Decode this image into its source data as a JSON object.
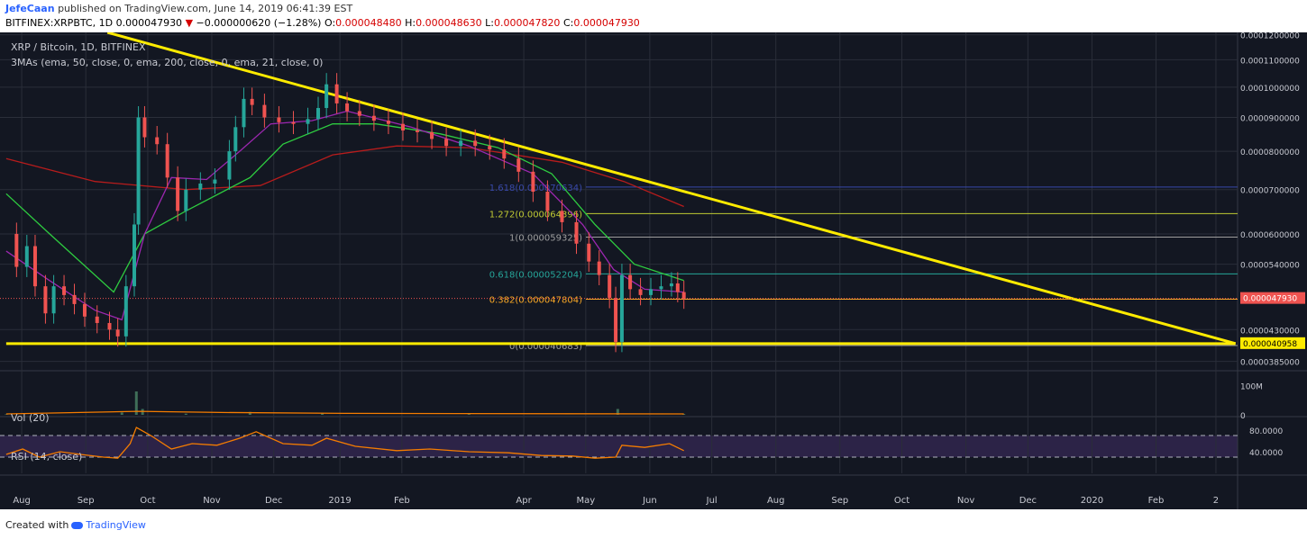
{
  "header": {
    "author": "JefeCaan",
    "published": "published on TradingView.com, June 14, 2019 06:41:39 EST",
    "symbol": "BITFINEX:XRPBTC, 1D",
    "last": "0.000047930",
    "arrow": "▼",
    "change": "−0.000000620 (−1.28%)",
    "o_label": "O:",
    "o": "0.000048480",
    "h_label": "H:",
    "h": "0.000048630",
    "l_label": "L:",
    "l": "0.000047820",
    "c_label": "C:",
    "c": "0.000047930"
  },
  "footer": {
    "created": "Created with",
    "brand": "TradingView"
  },
  "chart_data": {
    "type": "line",
    "title": "XRP / Bitcoin, 1D, BITFINEX",
    "indicator_label": "3MAs (ema, 50, close, 0, ema, 200, close, 0, ema, 21, close, 0)",
    "colors": {
      "bg": "#131722",
      "up": "#26a69a",
      "down": "#ef5350",
      "ema21": "#9c27b0",
      "ema50": "#2ecc40",
      "ema200": "#b71c1c",
      "trend": "#ffeb00",
      "rsi": "#f57c00",
      "grid": "#2a2e39",
      "axis": "#c8cad2"
    },
    "x_ticks": [
      "Aug",
      "Sep",
      "Oct",
      "Nov",
      "Dec",
      "2019",
      "Feb",
      "Apr",
      "May",
      "Jun",
      "Jul",
      "Aug",
      "Sep",
      "Oct",
      "Nov",
      "Dec",
      "2020",
      "Feb",
      "2"
    ],
    "price_ticks": [
      "0.0001200000",
      "0.0001100000",
      "0.0001000000",
      "0.0000900000",
      "0.0000800000",
      "0.0000700000",
      "0.0000600000",
      "0.0000540000",
      "0.0000430000",
      "0.0000385000"
    ],
    "price_range": [
      3.75e-05,
      0.000121
    ],
    "price_marks": [
      {
        "text": "0.000047930",
        "value": 4.793e-05,
        "style": "red"
      },
      {
        "text": "0.000040958",
        "value": 4.0958e-05,
        "style": "yellow"
      }
    ],
    "ohlc_close": [
      {
        "d": "2018-07-20",
        "v": 6e-05
      },
      {
        "d": "2018-07-25",
        "v": 5.35e-05
      },
      {
        "d": "2018-07-30",
        "v": 5.75e-05
      },
      {
        "d": "2018-08-03",
        "v": 5e-05
      },
      {
        "d": "2018-08-08",
        "v": 4.55e-05
      },
      {
        "d": "2018-08-12",
        "v": 5e-05
      },
      {
        "d": "2018-08-17",
        "v": 4.85e-05
      },
      {
        "d": "2018-08-22",
        "v": 4.7e-05
      },
      {
        "d": "2018-08-27",
        "v": 4.5e-05
      },
      {
        "d": "2018-09-02",
        "v": 4.4e-05
      },
      {
        "d": "2018-09-08",
        "v": 4.3e-05
      },
      {
        "d": "2018-09-12",
        "v": 4.2e-05
      },
      {
        "d": "2018-09-16",
        "v": 5e-05
      },
      {
        "d": "2018-09-20",
        "v": 6.2e-05
      },
      {
        "d": "2018-09-22",
        "v": 9e-05
      },
      {
        "d": "2018-09-25",
        "v": 8.4e-05
      },
      {
        "d": "2018-10-01",
        "v": 8.2e-05
      },
      {
        "d": "2018-10-06",
        "v": 7.3e-05
      },
      {
        "d": "2018-10-11",
        "v": 6.5e-05
      },
      {
        "d": "2018-10-15",
        "v": 7e-05
      },
      {
        "d": "2018-10-22",
        "v": 7.15e-05
      },
      {
        "d": "2018-10-29",
        "v": 7.25e-05
      },
      {
        "d": "2018-11-05",
        "v": 8e-05
      },
      {
        "d": "2018-11-08",
        "v": 8.7e-05
      },
      {
        "d": "2018-11-12",
        "v": 9.6e-05
      },
      {
        "d": "2018-11-16",
        "v": 9.4e-05
      },
      {
        "d": "2018-11-22",
        "v": 9e-05
      },
      {
        "d": "2018-11-29",
        "v": 8.85e-05
      },
      {
        "d": "2018-12-06",
        "v": 8.8e-05
      },
      {
        "d": "2018-12-13",
        "v": 8.95e-05
      },
      {
        "d": "2018-12-18",
        "v": 9.3e-05
      },
      {
        "d": "2018-12-22",
        "v": 0.000101
      },
      {
        "d": "2018-12-27",
        "v": 9.45e-05
      },
      {
        "d": "2019-01-01",
        "v": 9.2e-05
      },
      {
        "d": "2019-01-07",
        "v": 9.05e-05
      },
      {
        "d": "2019-01-14",
        "v": 8.9e-05
      },
      {
        "d": "2019-01-21",
        "v": 8.8e-05
      },
      {
        "d": "2019-01-28",
        "v": 8.6e-05
      },
      {
        "d": "2019-02-04",
        "v": 8.55e-05
      },
      {
        "d": "2019-02-11",
        "v": 8.35e-05
      },
      {
        "d": "2019-02-18",
        "v": 8.15e-05
      },
      {
        "d": "2019-02-25",
        "v": 8.3e-05
      },
      {
        "d": "2019-03-04",
        "v": 8.15e-05
      },
      {
        "d": "2019-03-11",
        "v": 8.05e-05
      },
      {
        "d": "2019-03-18",
        "v": 7.8e-05
      },
      {
        "d": "2019-03-25",
        "v": 7.45e-05
      },
      {
        "d": "2019-04-01",
        "v": 6.95e-05
      },
      {
        "d": "2019-04-08",
        "v": 6.5e-05
      },
      {
        "d": "2019-04-15",
        "v": 6.25e-05
      },
      {
        "d": "2019-04-22",
        "v": 5.8e-05
      },
      {
        "d": "2019-04-28",
        "v": 5.45e-05
      },
      {
        "d": "2019-05-03",
        "v": 5.2e-05
      },
      {
        "d": "2019-05-08",
        "v": 4.8e-05
      },
      {
        "d": "2019-05-11",
        "v": 4.12e-05
      },
      {
        "d": "2019-05-14",
        "v": 5.2e-05
      },
      {
        "d": "2019-05-18",
        "v": 4.95e-05
      },
      {
        "d": "2019-05-23",
        "v": 4.85e-05
      },
      {
        "d": "2019-05-28",
        "v": 4.95e-05
      },
      {
        "d": "2019-06-02",
        "v": 5e-05
      },
      {
        "d": "2019-06-07",
        "v": 5.05e-05
      },
      {
        "d": "2019-06-10",
        "v": 4.9e-05
      },
      {
        "d": "2019-06-13",
        "v": 4.79e-05
      }
    ],
    "ema21": [
      {
        "d": "2018-07-20",
        "v": 5.65e-05
      },
      {
        "d": "2018-08-10",
        "v": 5.1e-05
      },
      {
        "d": "2018-09-01",
        "v": 4.6e-05
      },
      {
        "d": "2018-09-14",
        "v": 4.45e-05
      },
      {
        "d": "2018-09-25",
        "v": 6e-05
      },
      {
        "d": "2018-10-08",
        "v": 7.3e-05
      },
      {
        "d": "2018-10-25",
        "v": 7.25e-05
      },
      {
        "d": "2018-11-10",
        "v": 8e-05
      },
      {
        "d": "2018-11-25",
        "v": 8.8e-05
      },
      {
        "d": "2018-12-15",
        "v": 8.9e-05
      },
      {
        "d": "2019-01-01",
        "v": 9.2e-05
      },
      {
        "d": "2019-02-01",
        "v": 8.7e-05
      },
      {
        "d": "2019-03-01",
        "v": 8.15e-05
      },
      {
        "d": "2019-04-01",
        "v": 7.4e-05
      },
      {
        "d": "2019-04-25",
        "v": 6.2e-05
      },
      {
        "d": "2019-05-10",
        "v": 5.3e-05
      },
      {
        "d": "2019-05-25",
        "v": 4.95e-05
      },
      {
        "d": "2019-06-13",
        "v": 4.9e-05
      }
    ],
    "ema50": [
      {
        "d": "2018-07-20",
        "v": 6.9e-05
      },
      {
        "d": "2018-08-10",
        "v": 6e-05
      },
      {
        "d": "2018-09-10",
        "v": 4.9e-05
      },
      {
        "d": "2018-09-25",
        "v": 6e-05
      },
      {
        "d": "2018-10-15",
        "v": 6.5e-05
      },
      {
        "d": "2018-11-15",
        "v": 7.3e-05
      },
      {
        "d": "2018-12-01",
        "v": 8.2e-05
      },
      {
        "d": "2018-12-25",
        "v": 8.8e-05
      },
      {
        "d": "2019-01-15",
        "v": 8.8e-05
      },
      {
        "d": "2019-02-15",
        "v": 8.5e-05
      },
      {
        "d": "2019-03-15",
        "v": 8.1e-05
      },
      {
        "d": "2019-04-10",
        "v": 7.4e-05
      },
      {
        "d": "2019-05-01",
        "v": 6.2e-05
      },
      {
        "d": "2019-05-20",
        "v": 5.4e-05
      },
      {
        "d": "2019-06-13",
        "v": 5.1e-05
      }
    ],
    "ema200": [
      {
        "d": "2018-07-20",
        "v": 7.8e-05
      },
      {
        "d": "2018-09-01",
        "v": 7.2e-05
      },
      {
        "d": "2018-10-15",
        "v": 7e-05
      },
      {
        "d": "2018-11-20",
        "v": 7.1e-05
      },
      {
        "d": "2018-12-25",
        "v": 7.9e-05
      },
      {
        "d": "2019-01-25",
        "v": 8.15e-05
      },
      {
        "d": "2019-03-01",
        "v": 8.1e-05
      },
      {
        "d": "2019-04-15",
        "v": 7.7e-05
      },
      {
        "d": "2019-05-15",
        "v": 7.2e-05
      },
      {
        "d": "2019-06-13",
        "v": 6.6e-05
      }
    ],
    "fibonacci": [
      {
        "label": "1.618(0.000070634)",
        "value": 7.0634e-05,
        "color": "#3949ab"
      },
      {
        "label": "1.272(0.000064396)",
        "value": 6.4396e-05,
        "color": "#c0ca33"
      },
      {
        "label": "1(0.000059325)",
        "value": 5.9325e-05,
        "color": "#9e9e9e"
      },
      {
        "label": "0.618(0.000052204)",
        "value": 5.2204e-05,
        "color": "#26a69a"
      },
      {
        "label": "0.382(0.000047804)",
        "value": 4.7804e-05,
        "color": "#f9a825"
      },
      {
        "label": "0(0.000040683)",
        "value": 4.0683e-05,
        "color": "#9e9e9e"
      }
    ],
    "trendlines": [
      {
        "from": {
          "d": "2018-09-07",
          "v": 0.000121
        },
        "to": {
          "d": "2020-03-06",
          "v": 4.0958e-05
        }
      },
      {
        "from": {
          "d": "2018-07-20",
          "v": 4.0958e-05
        },
        "to": {
          "d": "2020-03-06",
          "v": 4.0958e-05
        }
      }
    ],
    "volume": {
      "label": "Vol (20)",
      "ticks": [
        "100M",
        "0"
      ],
      "range": [
        0,
        120000000
      ],
      "series": [
        {
          "d": "2018-07-20",
          "v": 2000000
        },
        {
          "d": "2018-09-14",
          "v": 8000000
        },
        {
          "d": "2018-09-21",
          "v": 80000000
        },
        {
          "d": "2018-09-24",
          "v": 20000000
        },
        {
          "d": "2018-10-15",
          "v": 4000000
        },
        {
          "d": "2018-11-15",
          "v": 10000000
        },
        {
          "d": "2018-12-20",
          "v": 6000000
        },
        {
          "d": "2019-03-01",
          "v": 3000000
        },
        {
          "d": "2019-05-12",
          "v": 20000000
        },
        {
          "d": "2019-06-13",
          "v": 3000000
        }
      ],
      "ma": [
        {
          "d": "2018-07-20",
          "v": 3000000
        },
        {
          "d": "2018-09-22",
          "v": 12000000
        },
        {
          "d": "2018-11-01",
          "v": 8000000
        },
        {
          "d": "2019-01-01",
          "v": 5000000
        },
        {
          "d": "2019-06-13",
          "v": 3000000
        }
      ]
    },
    "rsi": {
      "label": "RSI (14, close)",
      "ticks": [
        "80.0000",
        "40.0000"
      ],
      "range": [
        0,
        100
      ],
      "bands": [
        70,
        30
      ],
      "series": [
        {
          "d": "2018-07-20",
          "v": 35
        },
        {
          "d": "2018-07-28",
          "v": 45
        },
        {
          "d": "2018-08-05",
          "v": 30
        },
        {
          "d": "2018-08-15",
          "v": 40
        },
        {
          "d": "2018-08-25",
          "v": 35
        },
        {
          "d": "2018-09-05",
          "v": 30
        },
        {
          "d": "2018-09-12",
          "v": 28
        },
        {
          "d": "2018-09-18",
          "v": 55
        },
        {
          "d": "2018-09-21",
          "v": 85
        },
        {
          "d": "2018-09-28",
          "v": 70
        },
        {
          "d": "2018-10-08",
          "v": 45
        },
        {
          "d": "2018-10-18",
          "v": 55
        },
        {
          "d": "2018-10-30",
          "v": 52
        },
        {
          "d": "2018-11-10",
          "v": 65
        },
        {
          "d": "2018-11-18",
          "v": 77
        },
        {
          "d": "2018-12-01",
          "v": 55
        },
        {
          "d": "2018-12-15",
          "v": 52
        },
        {
          "d": "2018-12-22",
          "v": 65
        },
        {
          "d": "2019-01-05",
          "v": 50
        },
        {
          "d": "2019-01-25",
          "v": 42
        },
        {
          "d": "2019-02-10",
          "v": 45
        },
        {
          "d": "2019-03-01",
          "v": 40
        },
        {
          "d": "2019-03-20",
          "v": 38
        },
        {
          "d": "2019-04-05",
          "v": 33
        },
        {
          "d": "2019-04-20",
          "v": 32
        },
        {
          "d": "2019-05-01",
          "v": 28
        },
        {
          "d": "2019-05-11",
          "v": 30
        },
        {
          "d": "2019-05-14",
          "v": 52
        },
        {
          "d": "2019-05-25",
          "v": 48
        },
        {
          "d": "2019-06-06",
          "v": 55
        },
        {
          "d": "2019-06-13",
          "v": 42
        }
      ]
    },
    "grid": true,
    "legend": "top-left"
  }
}
